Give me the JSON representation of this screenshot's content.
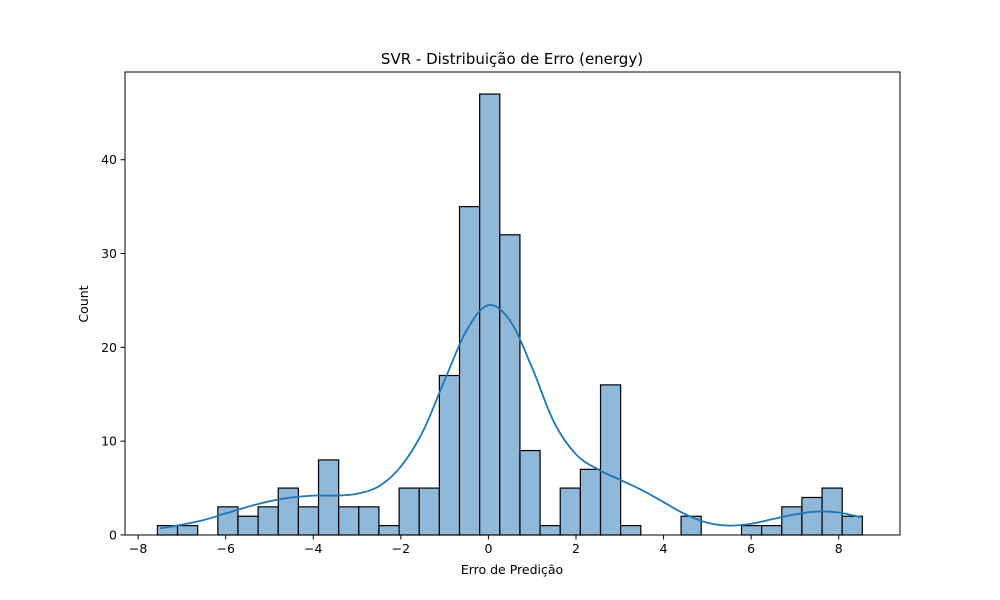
{
  "chart_data": {
    "type": "bar",
    "title": "SVR - Distribuição de Erro (energy)",
    "xlabel": "Erro de Predição",
    "ylabel": "Count",
    "xlim": [
      -8.3,
      9.4
    ],
    "ylim": [
      0,
      49.35
    ],
    "x_ticks": [
      -8,
      -6,
      -4,
      -2,
      0,
      2,
      4,
      6,
      8
    ],
    "y_ticks": [
      0,
      10,
      20,
      30,
      40
    ],
    "bin_edges": [
      -7.56,
      -7.1,
      -6.64,
      -6.18,
      -5.72,
      -5.26,
      -4.8,
      -4.34,
      -3.88,
      -3.42,
      -2.96,
      -2.5,
      -2.04,
      -1.58,
      -1.12,
      -0.66,
      -0.2,
      0.26,
      0.72,
      1.18,
      1.64,
      2.1,
      2.56,
      3.02,
      3.48,
      3.94,
      4.4,
      4.86,
      5.32,
      5.78,
      6.24,
      6.7,
      7.16,
      7.62,
      8.08,
      8.54
    ],
    "series": [
      {
        "values": [
          1,
          1,
          0,
          3,
          2,
          3,
          5,
          3,
          8,
          3,
          3,
          1,
          5,
          5,
          17,
          35,
          47,
          32,
          9,
          1,
          5,
          7,
          16,
          1,
          0,
          0,
          2,
          0,
          0,
          1,
          1,
          3,
          4,
          5,
          2
        ]
      }
    ],
    "kde": {
      "x": [
        -7.5,
        -7.0,
        -6.5,
        -6.0,
        -5.5,
        -5.0,
        -4.5,
        -4.0,
        -3.5,
        -3.0,
        -2.5,
        -2.0,
        -1.5,
        -1.0,
        -0.5,
        0.0,
        0.5,
        1.0,
        1.5,
        2.0,
        2.5,
        3.0,
        3.5,
        4.0,
        4.5,
        5.0,
        5.5,
        6.0,
        6.5,
        7.0,
        7.5,
        8.0,
        8.5
      ],
      "y": [
        0.7,
        1.1,
        1.6,
        2.3,
        3.0,
        3.6,
        4.0,
        4.2,
        4.2,
        4.4,
        5.2,
        7.3,
        11.0,
        16.5,
        21.8,
        24.5,
        22.8,
        17.8,
        12.0,
        8.6,
        7.0,
        5.9,
        4.8,
        3.5,
        2.2,
        1.3,
        1.0,
        1.2,
        1.7,
        2.2,
        2.5,
        2.4,
        1.9
      ]
    },
    "colors": {
      "bar_fill": "#8fb8d9",
      "bar_edge": "#000000",
      "kde_line": "#1f77b4"
    },
    "grid": false,
    "legend": "none"
  }
}
